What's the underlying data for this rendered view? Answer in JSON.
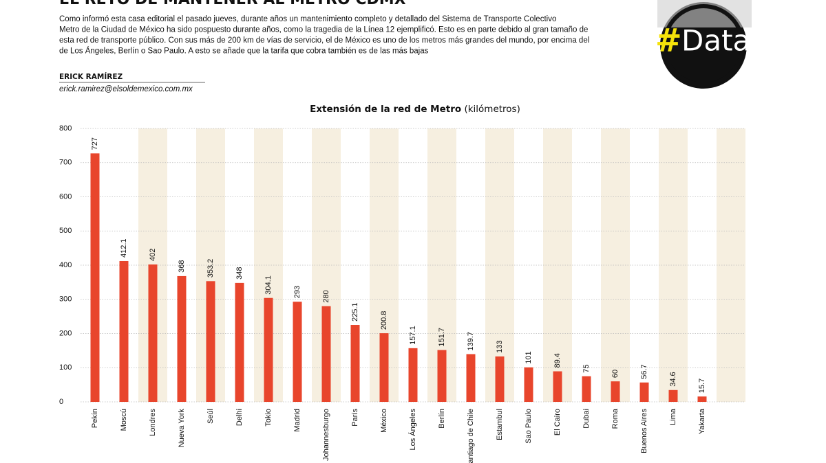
{
  "header": {
    "title": "EL RETO DE MANTENER AL METRO CDMX",
    "paragraph": [
      "Como informó esta casa editorial el pasado jueves, durante años un mantenimiento completo y detallado del  Sistema de Transporte Colectivo",
      "Metro de la Ciudad de México ha sido pospuesto durante años, como la tragedia de la Línea 12 ejemplificó. Esto es en parte debido al gran tamaño de",
      "esta red de transporte público. Con sus más de 200 km de vías de servicio, el de México es uno de los metros más grandes del mundo, por encima del",
      "de Los Ángeles, Berlín o Sao Paulo. A esto se añade que la tarifa que cobra también es de las más bajas"
    ],
    "author": "ERICK RAMÍREZ",
    "email": "erick.ramirez@elsoldemexico.com.mx",
    "badge": {
      "hash": "#",
      "word": "Data"
    }
  },
  "chart_data": {
    "type": "bar",
    "title": "Extensión de la red de Metro",
    "title_unit": "(kilómetros)",
    "categories": [
      "Pekín",
      "Moscú",
      "Londres",
      "Nueva York",
      "Seúl",
      "Delhi",
      "Tokio",
      "Madrid",
      "Johannesburgo",
      "París",
      "México",
      "Los Ángeles",
      "Berlín",
      "Santiago de Chile",
      "Estambul",
      "Sao Paulo",
      "El Cairo",
      "Dubai",
      "Roma",
      "Buenos Aires",
      "Lima",
      "Yakarta"
    ],
    "values": [
      727,
      412.1,
      402,
      368,
      353.2,
      348,
      304.1,
      293,
      280,
      225.1,
      200.8,
      157.1,
      151.7,
      139.7,
      133,
      101,
      89.4,
      75,
      60,
      56.7,
      34.6,
      15.7
    ],
    "color": "#e8452c",
    "ylim": [
      0,
      800
    ],
    "yticks": [
      0,
      100,
      200,
      300,
      400,
      500,
      600,
      700,
      800
    ],
    "grid": true
  }
}
